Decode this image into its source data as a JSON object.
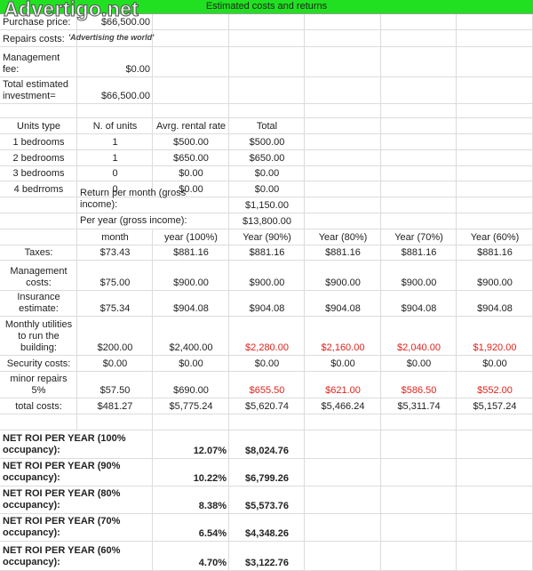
{
  "header": {
    "title": "Estimated costs and returns"
  },
  "watermark": {
    "brand": "Advertigo.net",
    "tagline": "'Advertising the world'"
  },
  "investment": [
    {
      "label": "Purchase price:",
      "value": "$66,500.00"
    },
    {
      "label": "Repairs costs:"
    },
    {
      "label": "Management fee:",
      "value": "$0.00"
    },
    {
      "label": "Total estimated investment=",
      "value": "$66,500.00"
    }
  ],
  "units": {
    "columns": [
      "Units type",
      "N. of units",
      "Avrg. rental rate",
      "Total"
    ],
    "rows": [
      [
        "1 bedrooms",
        "1",
        "$500.00",
        "$500.00"
      ],
      [
        "2 bedrooms",
        "1",
        "$650.00",
        "$650.00"
      ],
      [
        "3 bedrooms",
        "0",
        "$0.00",
        "$0.00"
      ],
      [
        "4 bedrroms",
        "0",
        "$0.00",
        "$0.00"
      ]
    ]
  },
  "gross": [
    {
      "label": "Return per month (gross income):",
      "value": "$1,150.00"
    },
    {
      "label": "Per year (gross income):",
      "value": "$13,800.00"
    }
  ],
  "costs": {
    "columns": [
      "month",
      "year (100%)",
      "Year (90%)",
      "Year (80%)",
      "Year (70%)",
      "Year (60%)"
    ],
    "rows": [
      {
        "label": "Taxes:",
        "values": [
          "$73.43",
          "$881.16",
          "$881.16",
          "$881.16",
          "$881.16",
          "$881.16"
        ]
      },
      {
        "label": "Management costs:",
        "values": [
          "$75.00",
          "$900.00",
          "$900.00",
          "$900.00",
          "$900.00",
          "$900.00"
        ]
      },
      {
        "label": "Insurance estimate:",
        "values": [
          "$75.34",
          "$904.08",
          "$904.08",
          "$904.08",
          "$904.08",
          "$904.08"
        ]
      },
      {
        "label": "Monthly utilities to run the building:",
        "values": [
          "$200.00",
          "$2,400.00",
          "$2,280.00",
          "$2,160.00",
          "$2,040.00",
          "$1,920.00"
        ]
      },
      {
        "label": "Security costs:",
        "values": [
          "$0.00",
          "$0.00",
          "$0.00",
          "$0.00",
          "$0.00",
          "$0.00"
        ]
      },
      {
        "label": "minor repairs 5%",
        "values": [
          "$57.50",
          "$690.00",
          "$655.50",
          "$621.00",
          "$586.50",
          "$552.00"
        ]
      },
      {
        "label": "total costs:",
        "values": [
          "$481.27",
          "$5,775.24",
          "$5,620.74",
          "$5,466.24",
          "$5,311.74",
          "$5,157.24"
        ]
      }
    ]
  },
  "roi": [
    {
      "label": "NET ROI PER YEAR (100% occupancy):",
      "percent": "12.07%",
      "amount": "$8,024.76"
    },
    {
      "label": "NET ROI PER YEAR (90% occupancy):",
      "percent": "10.22%",
      "amount": "$6,799.26"
    },
    {
      "label": "NET ROI PER YEAR (80% occupancy):",
      "percent": "8.38%",
      "amount": "$5,573.76"
    },
    {
      "label": "NET ROI PER YEAR (70% occupancy):",
      "percent": "6.54%",
      "amount": "$4,348.26"
    },
    {
      "label": "NET ROI PER YEAR (60% occupancy):",
      "percent": "4.70%",
      "amount": "$3,122.76"
    }
  ]
}
